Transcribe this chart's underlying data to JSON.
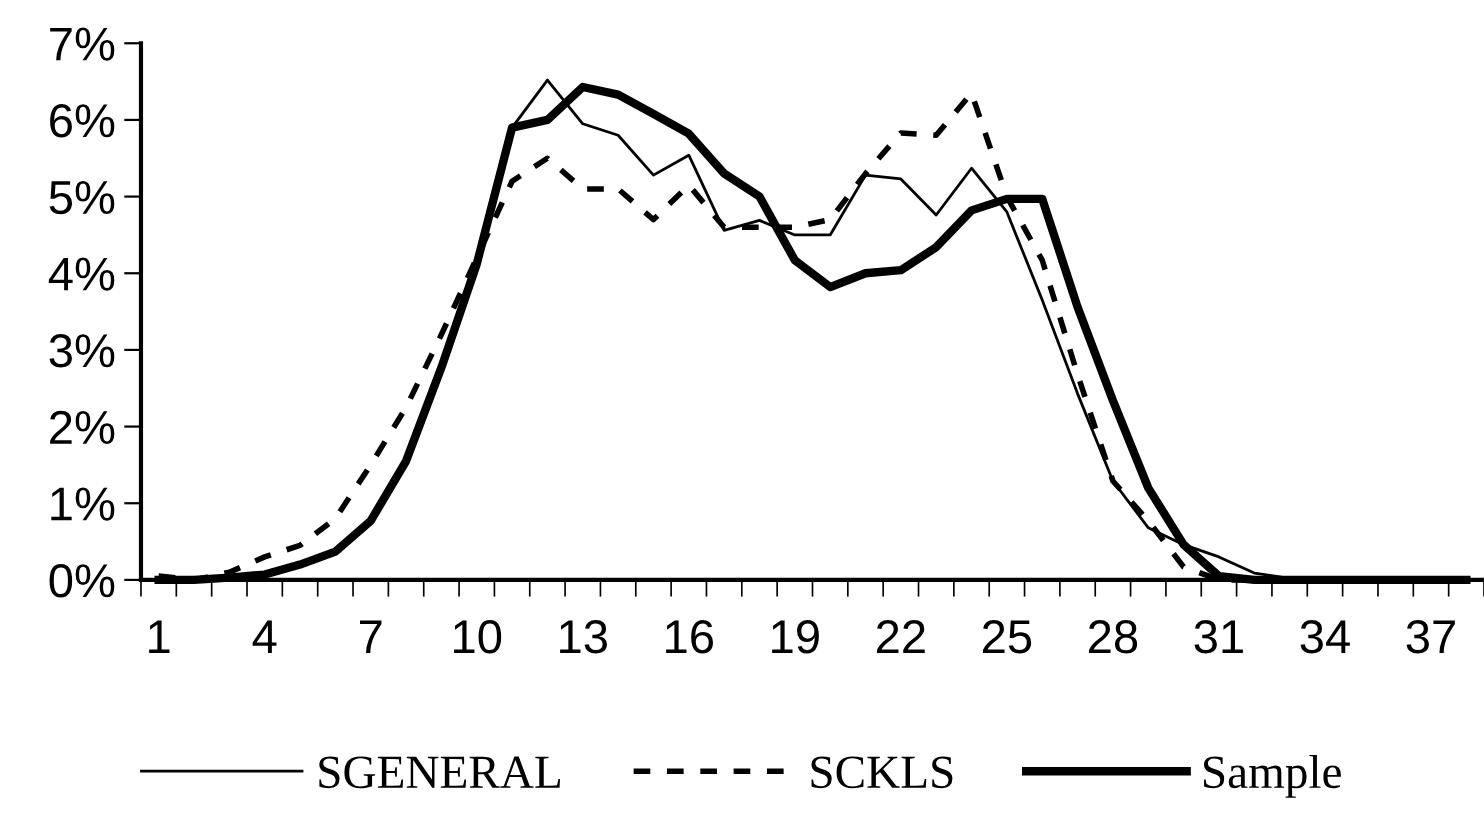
{
  "chart_data": {
    "type": "line",
    "categories": [
      "1",
      null,
      null,
      "4",
      null,
      null,
      "7",
      null,
      null,
      "10",
      null,
      null,
      "13",
      null,
      null,
      "16",
      null,
      null,
      "19",
      null,
      null,
      "22",
      null,
      null,
      "25",
      null,
      null,
      "28",
      null,
      null,
      "31",
      null,
      null,
      "34",
      null,
      null,
      "37",
      null
    ],
    "series": [
      {
        "name": "SGENERAL",
        "color": "#000000",
        "line_style": "solid",
        "values": [
          0.0,
          0.0,
          0.03,
          0.05,
          0.18,
          0.35,
          0.75,
          1.5,
          2.7,
          4.1,
          5.9,
          6.52,
          5.95,
          5.8,
          5.28,
          5.54,
          4.56,
          4.69,
          4.5,
          4.5,
          5.28,
          5.23,
          4.76,
          5.37,
          4.8,
          3.65,
          2.43,
          1.29,
          0.68,
          0.46,
          0.3,
          0.09,
          0.02,
          0.0,
          0.0,
          0.0,
          0.0,
          0.0
        ]
      },
      {
        "name": "SCKLS",
        "color": "#000000",
        "line_style": "dashed",
        "values": [
          0.05,
          0.0,
          0.1,
          0.3,
          0.45,
          0.8,
          1.5,
          2.25,
          3.2,
          4.2,
          5.2,
          5.5,
          5.1,
          5.1,
          4.7,
          5.15,
          4.6,
          4.6,
          4.6,
          4.7,
          5.3,
          5.83,
          5.8,
          6.35,
          5.0,
          4.17,
          2.68,
          1.29,
          0.77,
          0.17,
          0.0,
          0.0,
          0.0,
          0.0,
          0.0,
          0.0,
          0.0,
          0.0
        ]
      },
      {
        "name": "Sample",
        "color": "#000000",
        "line_style": "solid",
        "values": [
          0.0,
          0.0,
          0.03,
          0.07,
          0.2,
          0.37,
          0.77,
          1.55,
          2.77,
          4.12,
          5.9,
          6.0,
          6.43,
          6.33,
          6.08,
          5.82,
          5.3,
          5.0,
          4.17,
          3.82,
          4.0,
          4.04,
          4.34,
          4.82,
          4.97,
          4.97,
          3.56,
          2.34,
          1.2,
          0.46,
          0.05,
          0.0,
          0.0,
          0.0,
          0.0,
          0.0,
          0.0,
          0.0
        ]
      }
    ],
    "ylim": [
      0,
      7
    ],
    "yticks": [
      {
        "value": 0,
        "label": "0%"
      },
      {
        "value": 1,
        "label": "1%"
      },
      {
        "value": 2,
        "label": "2%"
      },
      {
        "value": 3,
        "label": "3%"
      },
      {
        "value": 4,
        "label": "4%"
      },
      {
        "value": 5,
        "label": "5%"
      },
      {
        "value": 6,
        "label": "6%"
      },
      {
        "value": 7,
        "label": "7%"
      }
    ],
    "grid": false,
    "legend": "bottom",
    "marker": "none"
  }
}
